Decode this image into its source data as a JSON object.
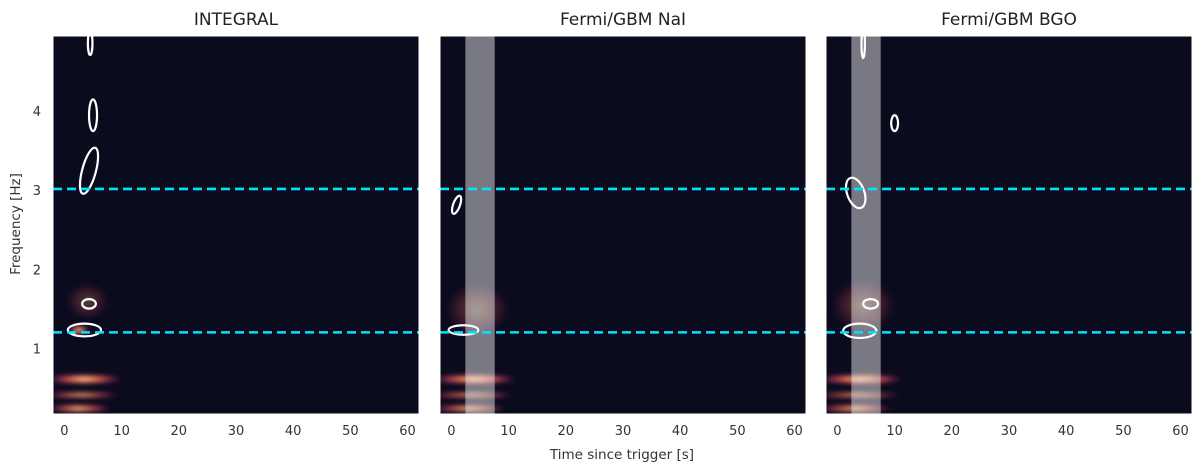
{
  "chart_data": [
    {
      "type": "heatmap",
      "title": "INTEGRAL",
      "xlabel": "Time since trigger [s]",
      "ylabel": "Frequency [Hz]",
      "xlim": [
        -2,
        62
      ],
      "ylim": [
        0.18,
        4.95
      ],
      "xticks": [
        0,
        10,
        20,
        30,
        40,
        50,
        60
      ],
      "yticks": [
        1,
        2,
        3,
        4
      ],
      "reference_lines": [
        {
          "orientation": "horizontal",
          "y": 3.02,
          "color": "#00e5ff",
          "style": "dashed"
        },
        {
          "orientation": "horizontal",
          "y": 1.21,
          "color": "#00e5ff",
          "style": "dashed"
        }
      ],
      "shaded_band": null,
      "contours": [
        {
          "t": 4.5,
          "f": 4.86,
          "dt": 0.4,
          "df": 0.15,
          "rot": 0
        },
        {
          "t": 5.0,
          "f": 3.95,
          "dt": 0.7,
          "df": 0.2,
          "rot": 0
        },
        {
          "t": 4.3,
          "f": 3.25,
          "dt": 1.2,
          "df": 0.3,
          "rot": 15
        },
        {
          "t": 4.3,
          "f": 1.57,
          "dt": 1.2,
          "df": 0.06,
          "rot": 0
        },
        {
          "t": 3.5,
          "f": 1.24,
          "dt": 2.9,
          "df": 0.08,
          "rot": 0
        }
      ],
      "power_features": [
        {
          "t": 2.5,
          "f": 0.25,
          "dt": 6,
          "df": 0.06,
          "intensity": 0.9
        },
        {
          "t": 3.0,
          "f": 0.42,
          "dt": 7,
          "df": 0.05,
          "intensity": 0.8
        },
        {
          "t": 3.5,
          "f": 0.62,
          "dt": 7,
          "df": 0.07,
          "intensity": 1.0
        },
        {
          "t": 2.5,
          "f": 1.24,
          "dt": 2,
          "df": 0.06,
          "intensity": 1.0
        },
        {
          "t": 4.0,
          "f": 1.6,
          "dt": 4,
          "df": 0.25,
          "intensity": 0.25
        }
      ]
    },
    {
      "type": "heatmap",
      "title": "Fermi/GBM NaI",
      "xlabel": "Time since trigger [s]",
      "ylabel": "",
      "xlim": [
        -2,
        62
      ],
      "ylim": [
        0.18,
        4.95
      ],
      "xticks": [
        0,
        10,
        20,
        30,
        40,
        50,
        60
      ],
      "yticks": [
        1,
        2,
        3,
        4
      ],
      "reference_lines": [
        {
          "orientation": "horizontal",
          "y": 3.02,
          "color": "#00e5ff",
          "style": "dashed"
        },
        {
          "orientation": "horizontal",
          "y": 1.21,
          "color": "#00e5ff",
          "style": "dashed"
        }
      ],
      "shaded_band": {
        "x0": 2.5,
        "x1": 7.5,
        "color": "#ffffff",
        "opacity": 0.45
      },
      "contours": [
        {
          "t": 0.9,
          "f": 2.82,
          "dt": 0.6,
          "df": 0.12,
          "rot": 20
        },
        {
          "t": 2.1,
          "f": 1.24,
          "dt": 2.6,
          "df": 0.06,
          "rot": 0
        }
      ],
      "power_features": [
        {
          "t": 3.0,
          "f": 0.25,
          "dt": 7,
          "df": 0.06,
          "intensity": 0.85
        },
        {
          "t": 3.5,
          "f": 0.42,
          "dt": 8,
          "df": 0.05,
          "intensity": 0.75
        },
        {
          "t": 4.0,
          "f": 0.62,
          "dt": 8,
          "df": 0.07,
          "intensity": 1.0
        },
        {
          "t": 4.5,
          "f": 1.5,
          "dt": 6,
          "df": 0.35,
          "intensity": 0.3
        }
      ]
    },
    {
      "type": "heatmap",
      "title": "Fermi/GBM BGO",
      "xlabel": "Time since trigger [s]",
      "ylabel": "",
      "xlim": [
        -2,
        62
      ],
      "ylim": [
        0.18,
        4.95
      ],
      "xticks": [
        0,
        10,
        20,
        30,
        40,
        50,
        60
      ],
      "yticks": [
        1,
        2,
        3,
        4
      ],
      "reference_lines": [
        {
          "orientation": "horizontal",
          "y": 3.02,
          "color": "#00e5ff",
          "style": "dashed"
        },
        {
          "orientation": "horizontal",
          "y": 1.21,
          "color": "#00e5ff",
          "style": "dashed"
        }
      ],
      "shaded_band": {
        "x0": 2.5,
        "x1": 7.5,
        "color": "#ffffff",
        "opacity": 0.45
      },
      "contours": [
        {
          "t": 4.5,
          "f": 4.85,
          "dt": 0.3,
          "df": 0.18,
          "rot": 0
        },
        {
          "t": 10.0,
          "f": 3.85,
          "dt": 0.6,
          "df": 0.1,
          "rot": 0
        },
        {
          "t": 3.2,
          "f": 2.97,
          "dt": 1.5,
          "df": 0.2,
          "rot": -20
        },
        {
          "t": 5.8,
          "f": 1.57,
          "dt": 1.3,
          "df": 0.06,
          "rot": 0
        },
        {
          "t": 3.9,
          "f": 1.23,
          "dt": 2.9,
          "df": 0.09,
          "rot": 0
        }
      ],
      "power_features": [
        {
          "t": 3.0,
          "f": 0.25,
          "dt": 7,
          "df": 0.06,
          "intensity": 0.85
        },
        {
          "t": 3.5,
          "f": 0.42,
          "dt": 8,
          "df": 0.05,
          "intensity": 0.75
        },
        {
          "t": 4.0,
          "f": 0.62,
          "dt": 8,
          "df": 0.07,
          "intensity": 1.0
        },
        {
          "t": 4.5,
          "f": 1.55,
          "dt": 6,
          "df": 0.35,
          "intensity": 0.3
        }
      ]
    }
  ],
  "colors": {
    "background": "#0b0b1e",
    "frame": "#ffffff",
    "contour": "#ffffff",
    "reference_line": "#00e5ff"
  }
}
